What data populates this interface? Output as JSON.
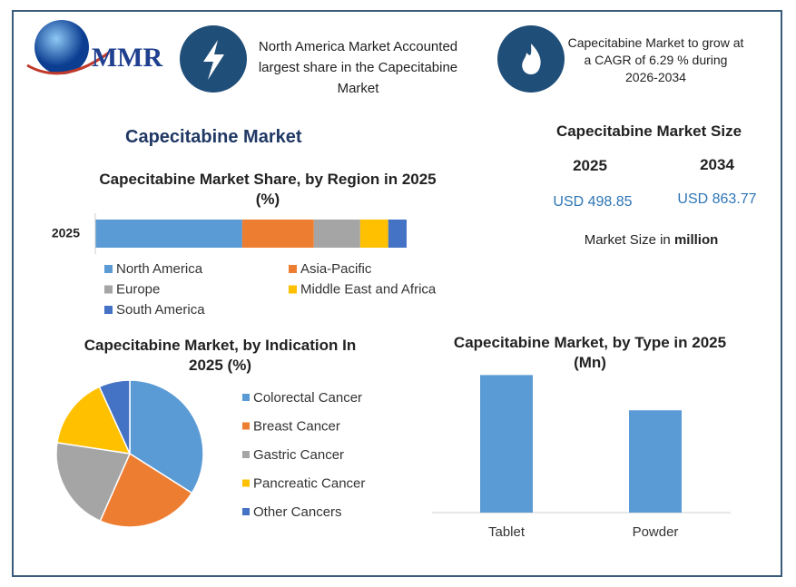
{
  "header": {
    "logo": "MMR",
    "fact_1": "North America Market Accounted largest share in the Capecitabine Market",
    "fact_2": "Capecitabine Market to grow at a CAGR of 6.29 % during 2026-2034"
  },
  "title": "Capecitabine Market",
  "market_size": {
    "title": "Capecitabine Market Size",
    "years": [
      "2025",
      "2034"
    ],
    "values": [
      "USD 498.85",
      "USD 863.77"
    ],
    "note": "Market Size in",
    "note_unit": "million"
  },
  "chart_data": [
    {
      "type": "stacked-bar",
      "title": "Capecitabine Market Share, by Region in 2025 (%)",
      "categories": [
        "2025"
      ],
      "xlim": [
        0,
        100
      ],
      "series": [
        {
          "name": "North America",
          "color": "#5b9bd5",
          "values": [
            47.2
          ]
        },
        {
          "name": "Asia-Pacific",
          "color": "#ed7d31",
          "values": [
            23
          ]
        },
        {
          "name": "Europe",
          "color": "#a5a5a5",
          "values": [
            14.9
          ]
        },
        {
          "name": "Middle East and Africa",
          "color": "#ffc000",
          "values": [
            9
          ]
        },
        {
          "name": "South America",
          "color": "#4472c4",
          "values": [
            5.9
          ]
        }
      ]
    },
    {
      "type": "pie",
      "title": "Capecitabine Market, by Indication In 2025 (%)",
      "categories": [
        "Colorectal Cancer",
        "Breast Cancer",
        "Gastric Cancer",
        "Pancreatic Cancer",
        "Other Cancers"
      ],
      "values": [
        34,
        22.6,
        20.8,
        15.8,
        6.8
      ],
      "colors": [
        "#5b9bd5",
        "#ed7d31",
        "#a5a5a5",
        "#ffc000",
        "#4472c4"
      ]
    },
    {
      "type": "bar",
      "title": "Capecitabine Market, by Type in 2025 (Mn)",
      "categories": [
        "Tablet",
        "Powder"
      ],
      "values": [
        286.1,
        212.75
      ],
      "color": "#5b9bd5",
      "ylim": [
        0,
        300
      ]
    }
  ]
}
